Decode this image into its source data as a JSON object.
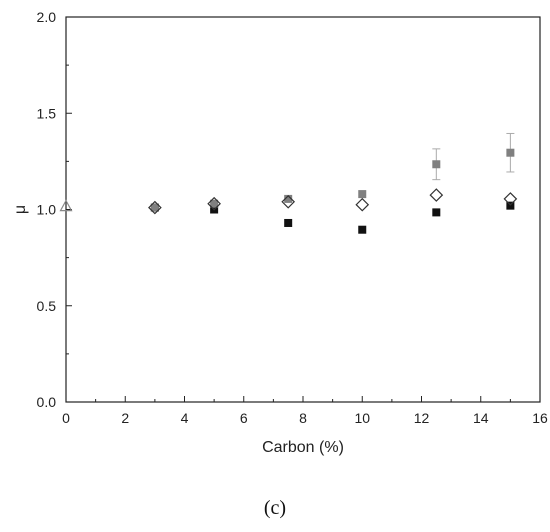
{
  "chart_data": {
    "type": "scatter",
    "title": "",
    "xlabel": "Carbon (%)",
    "ylabel": "μ",
    "xlim": [
      0,
      16
    ],
    "ylim": [
      0.0,
      2.0
    ],
    "x_ticks": [
      0,
      2,
      4,
      6,
      8,
      10,
      12,
      14,
      16
    ],
    "x_tick_labels": [
      "0",
      "2",
      "4",
      "6",
      "8",
      "10",
      "12",
      "14",
      "16"
    ],
    "y_ticks": [
      0.0,
      0.5,
      1.0,
      1.5,
      2.0
    ],
    "y_tick_labels": [
      "0.0",
      "0.5",
      "1.0",
      "1.5",
      "2.0"
    ],
    "grid": false,
    "legend": "none",
    "series": [
      {
        "marker": "square-filled",
        "color": "#111111",
        "points": [
          {
            "x": 3,
            "y": 1.01
          },
          {
            "x": 5,
            "y": 1.0
          },
          {
            "x": 7.5,
            "y": 0.93
          },
          {
            "x": 10,
            "y": 0.895
          },
          {
            "x": 12.5,
            "y": 0.985
          },
          {
            "x": 15,
            "y": 1.02
          }
        ]
      },
      {
        "marker": "square-filled",
        "color": "#808080",
        "points": [
          {
            "x": 3,
            "y": 1.01
          },
          {
            "x": 5,
            "y": 1.03
          },
          {
            "x": 7.5,
            "y": 1.055
          },
          {
            "x": 10,
            "y": 1.08
          },
          {
            "x": 12.5,
            "y": 1.235,
            "err": 0.08
          },
          {
            "x": 15,
            "y": 1.295,
            "err": 0.1
          }
        ]
      },
      {
        "marker": "diamond-open",
        "color": "#333333",
        "points": [
          {
            "x": 3,
            "y": 1.01
          },
          {
            "x": 5,
            "y": 1.03
          },
          {
            "x": 7.5,
            "y": 1.04
          },
          {
            "x": 10,
            "y": 1.025
          },
          {
            "x": 12.5,
            "y": 1.075
          },
          {
            "x": 15,
            "y": 1.055
          }
        ]
      },
      {
        "marker": "triangle-open",
        "color": "#888888",
        "points": [
          {
            "x": 0,
            "y": 1.015
          }
        ]
      }
    ]
  },
  "panel_label": "(c)"
}
